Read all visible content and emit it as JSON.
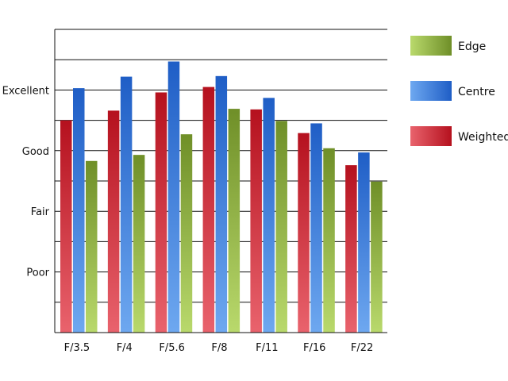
{
  "chart_data": {
    "type": "bar",
    "title": "",
    "xlabel": "",
    "ylabel": "",
    "categories": [
      "F/3.5",
      "F/4",
      "F/5.6",
      "F/8",
      "F/11",
      "F/16",
      "F/22"
    ],
    "y_tick_labels": [
      {
        "value": 1,
        "label": "Poor"
      },
      {
        "value": 2,
        "label": "Fair"
      },
      {
        "value": 3,
        "label": "Good"
      },
      {
        "value": 4,
        "label": "Excellent"
      }
    ],
    "ylim": [
      0,
      5
    ],
    "grid_step": 0.5,
    "grid": true,
    "legend_position": "top-right",
    "series": [
      {
        "name": "Weighted",
        "color_top": "#b5111e",
        "color_bottom": "#e9636d",
        "values": [
          3.5,
          3.66,
          3.96,
          4.05,
          3.68,
          3.29,
          2.76
        ]
      },
      {
        "name": "Centre",
        "color_top": "#1f5ec6",
        "color_bottom": "#6ea8f0",
        "values": [
          4.03,
          4.22,
          4.47,
          4.23,
          3.87,
          3.45,
          2.97
        ]
      },
      {
        "name": "Edge",
        "color_top": "#6f8f28",
        "color_bottom": "#b9d96c",
        "values": [
          2.83,
          2.93,
          3.27,
          3.69,
          3.49,
          3.04,
          2.49
        ]
      }
    ],
    "legend_order": [
      "Edge",
      "Centre",
      "Weighted"
    ]
  }
}
